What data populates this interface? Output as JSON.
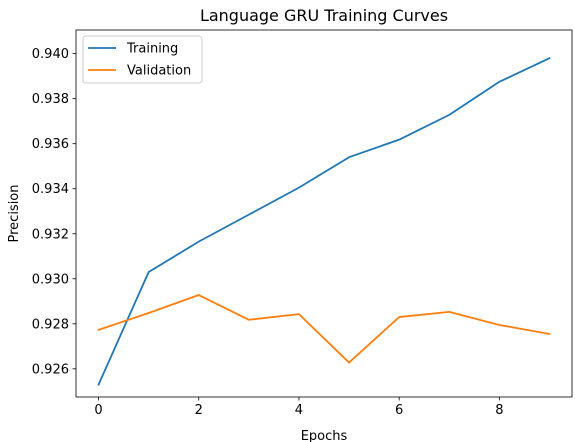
{
  "chart_data": {
    "type": "line",
    "title": "Language GRU Training Curves",
    "xlabel": "Epochs",
    "ylabel": "Precision",
    "x": [
      0,
      1,
      2,
      3,
      4,
      5,
      6,
      7,
      8,
      9
    ],
    "xlim": [
      -0.45,
      9.45
    ],
    "ylim": [
      0.92475,
      0.94105
    ],
    "xticks": [
      0,
      2,
      4,
      6,
      8
    ],
    "yticks": [
      0.926,
      0.928,
      0.93,
      0.932,
      0.934,
      0.936,
      0.938,
      0.94
    ],
    "ytick_labels": [
      "0.926",
      "0.928",
      "0.930",
      "0.932",
      "0.934",
      "0.936",
      "0.938",
      "0.940"
    ],
    "grid": false,
    "legend_position": "top-left",
    "series": [
      {
        "name": "Training",
        "color": "#1f77b4",
        "values": [
          0.9253,
          0.9303,
          0.93165,
          0.93285,
          0.93405,
          0.9354,
          0.93618,
          0.93728,
          0.93875,
          0.9398
        ]
      },
      {
        "name": "Validation",
        "color": "#ff7f0e",
        "values": [
          0.92773,
          0.92848,
          0.92928,
          0.92818,
          0.92843,
          0.92628,
          0.9283,
          0.92853,
          0.92795,
          0.92755
        ]
      }
    ]
  }
}
